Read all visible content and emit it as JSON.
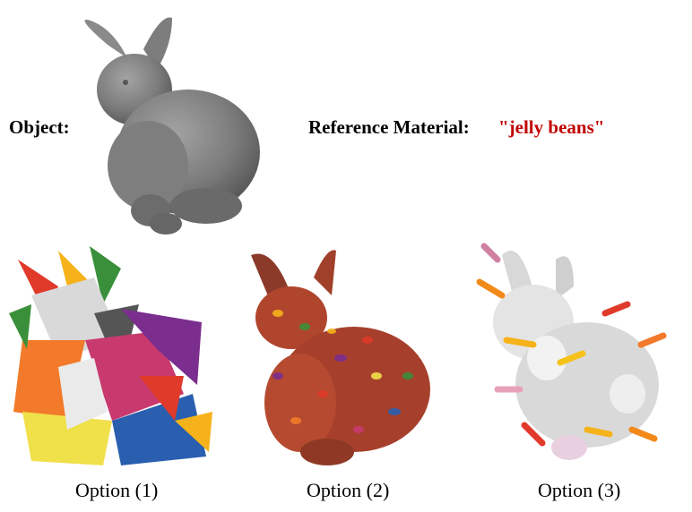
{
  "header": {
    "object_label": "Object:",
    "reference_label": "Reference Material:",
    "reference_value": "\"jelly beans\""
  },
  "object_image": {
    "subject": "bunny",
    "color": "#7a7a7a"
  },
  "options": [
    {
      "caption": "Option (1)",
      "subject": "bunny",
      "style": "faceted jelly bean texture"
    },
    {
      "caption": "Option (2)",
      "subject": "bunny",
      "style": "jelly bean covered"
    },
    {
      "caption": "Option (3)",
      "subject": "bunny",
      "style": "white bunnies with orange sticks"
    }
  ],
  "colors": {
    "reference_text": "#c00000",
    "jelly_palette": [
      "#e03a2a",
      "#f6b21a",
      "#3a8f3a",
      "#7b2e8e",
      "#f27a2a",
      "#2a5fb0",
      "#f0e04a",
      "#c83a6e"
    ]
  }
}
